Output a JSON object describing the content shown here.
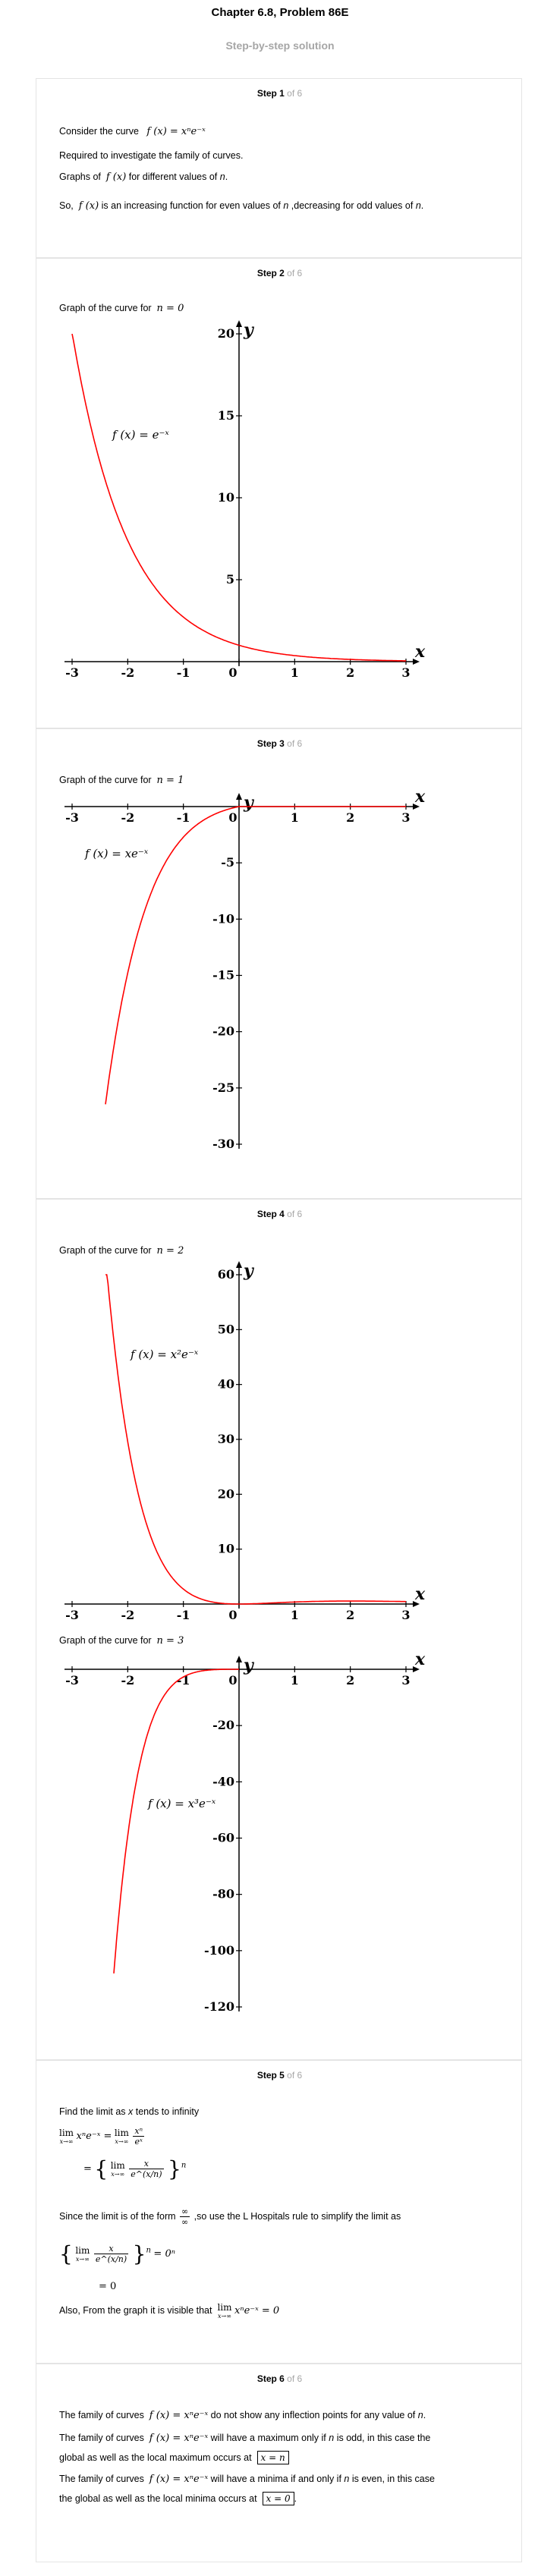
{
  "header": {
    "title": "Chapter 6.8, Problem 86E",
    "subtitle": "Step-by-step solution"
  },
  "step_of": "of 6",
  "steps": [
    {
      "label": "Step 1"
    },
    {
      "label": "Step 2"
    },
    {
      "label": "Step 3"
    },
    {
      "label": "Step 4"
    },
    {
      "label": "Step 5"
    },
    {
      "label": "Step 6"
    }
  ],
  "step1": {
    "consider": "Consider the curve",
    "curve": "f (x) = xⁿe⁻ˣ",
    "required": "Required to investigate the family of curves.",
    "graphs_pre": "Graphs of",
    "graphs_f": "f (x)",
    "graphs_post": "for different values of",
    "n": "n",
    "so_pre": "So,",
    "so_f": "f (x)",
    "so_post": "is an increasing function for even values of",
    "so_mid": ",decreasing for odd values of",
    "dot": "."
  },
  "graph_caption": "Graph of the curve for",
  "charts_data": {
    "chart_data": [
      {
        "type": "line",
        "condition": "n = 0",
        "label": "f (x) = e⁻ˣ",
        "n": 0,
        "x_range": [
          -3,
          3
        ],
        "xlim": [
          -3,
          3
        ],
        "ylim": [
          0,
          20
        ],
        "x_ticks": [
          -3,
          -2,
          -1,
          0,
          1,
          2,
          3
        ],
        "y_ticks": [
          5,
          10,
          15,
          20
        ],
        "xlabel": "x",
        "ylabel": "y",
        "line_color": "#ff0000"
      },
      {
        "type": "line",
        "condition": "n = 1",
        "label": "f (x) = xe⁻ˣ",
        "n": 1,
        "x_range": [
          -2.4,
          3
        ],
        "xlim": [
          -3,
          3
        ],
        "ylim": [
          -30,
          0
        ],
        "x_ticks": [
          -3,
          -2,
          -1,
          0,
          1,
          2,
          3
        ],
        "y_ticks": [
          -5,
          -10,
          -15,
          -20,
          -25,
          -30
        ],
        "xlabel": "x",
        "ylabel": "y",
        "line_color": "#ff0000"
      },
      {
        "type": "line",
        "condition": "n = 2",
        "label": "f (x) = x²e⁻ˣ",
        "n": 2,
        "x_range": [
          -2.4,
          3
        ],
        "xlim": [
          -3,
          3
        ],
        "ylim": [
          0,
          60
        ],
        "x_ticks": [
          -3,
          -2,
          -1,
          0,
          1,
          2,
          3
        ],
        "y_ticks": [
          10,
          20,
          30,
          40,
          50,
          60
        ],
        "xlabel": "x",
        "ylabel": "y",
        "line_color": "#ff0000"
      },
      {
        "type": "line",
        "condition": "n = 3",
        "label": "f (x) = x³e⁻ˣ",
        "n": 3,
        "x_range": [
          -2.25,
          0
        ],
        "xlim": [
          -3,
          3
        ],
        "ylim": [
          -120,
          0
        ],
        "x_ticks": [
          -3,
          -2,
          -1,
          0,
          1,
          2,
          3
        ],
        "y_ticks": [
          -20,
          -40,
          -60,
          -80,
          -100,
          -120
        ],
        "xlabel": "x",
        "ylabel": "y",
        "line_color": "#ff0000"
      }
    ]
  },
  "step5": {
    "find_pre": "Find the limit as",
    "find_x": "x",
    "find_post": "tends to infinity",
    "lim_text": "lim",
    "lim_sub": "x→∞",
    "eq1_lhs": "xⁿe⁻ˣ =",
    "eq1_num": "xⁿ",
    "eq1_den": "eˣ",
    "eq2_num": "x",
    "eq2_den": "e^(x/n)",
    "eq2_exp": "n",
    "since_pre": "Since the limit is of the form",
    "inf_num": "∞",
    "inf_den": "∞",
    "since_post": ",so use the L Hospitals rule to simplify the limit as",
    "eq3_rhs": "= 0ⁿ",
    "eq4": "= 0",
    "also_pre": "Also, From the graph it is visible that",
    "also_expr": "xⁿe⁻ˣ = 0"
  },
  "step6": {
    "l1_pre": "The family of curves",
    "l1_f": "f (x) = xⁿe⁻ˣ",
    "l1_post": "do not show any inflection points for any value of",
    "l2_pre": "The family of curves",
    "l2_f": "f (x) = xⁿe⁻ˣ",
    "l2_post": "will have a maximum only if",
    "l2_post2": "is odd, in this case the",
    "l3_pre": "global as well as the local maximum occurs at",
    "l3_box": "x = n",
    "l4_pre": "The family of curves",
    "l4_f": "f (x) = xⁿe⁻ˣ",
    "l4_post": "will have a minima if and only if",
    "l4_post2": "is even, in this case",
    "l5_pre": "the global as well as the local minima occurs at",
    "l5_box": "x = 0"
  }
}
